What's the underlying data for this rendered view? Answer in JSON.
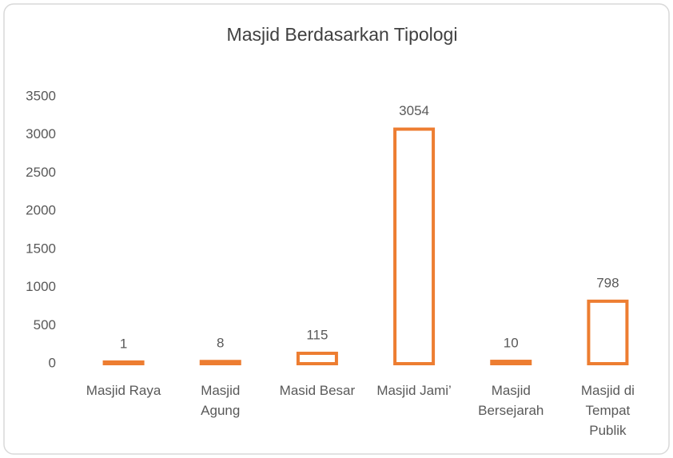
{
  "chart_data": {
    "type": "bar",
    "title": "Masjid Berdasarkan Tipologi",
    "categories": [
      "Masjid Raya",
      "Masjid\nAgung",
      "Masid Besar",
      "Masjid Jami’",
      "Masjid\nBersejarah",
      "Masjid di\nTempat\nPublik"
    ],
    "values": [
      1,
      8,
      115,
      3054,
      10,
      798
    ],
    "color": "#ed7d31",
    "ylim": [
      0,
      3500
    ],
    "yticks": [
      0,
      500,
      1000,
      1500,
      2000,
      2500,
      3000,
      3500
    ],
    "grid": false
  }
}
